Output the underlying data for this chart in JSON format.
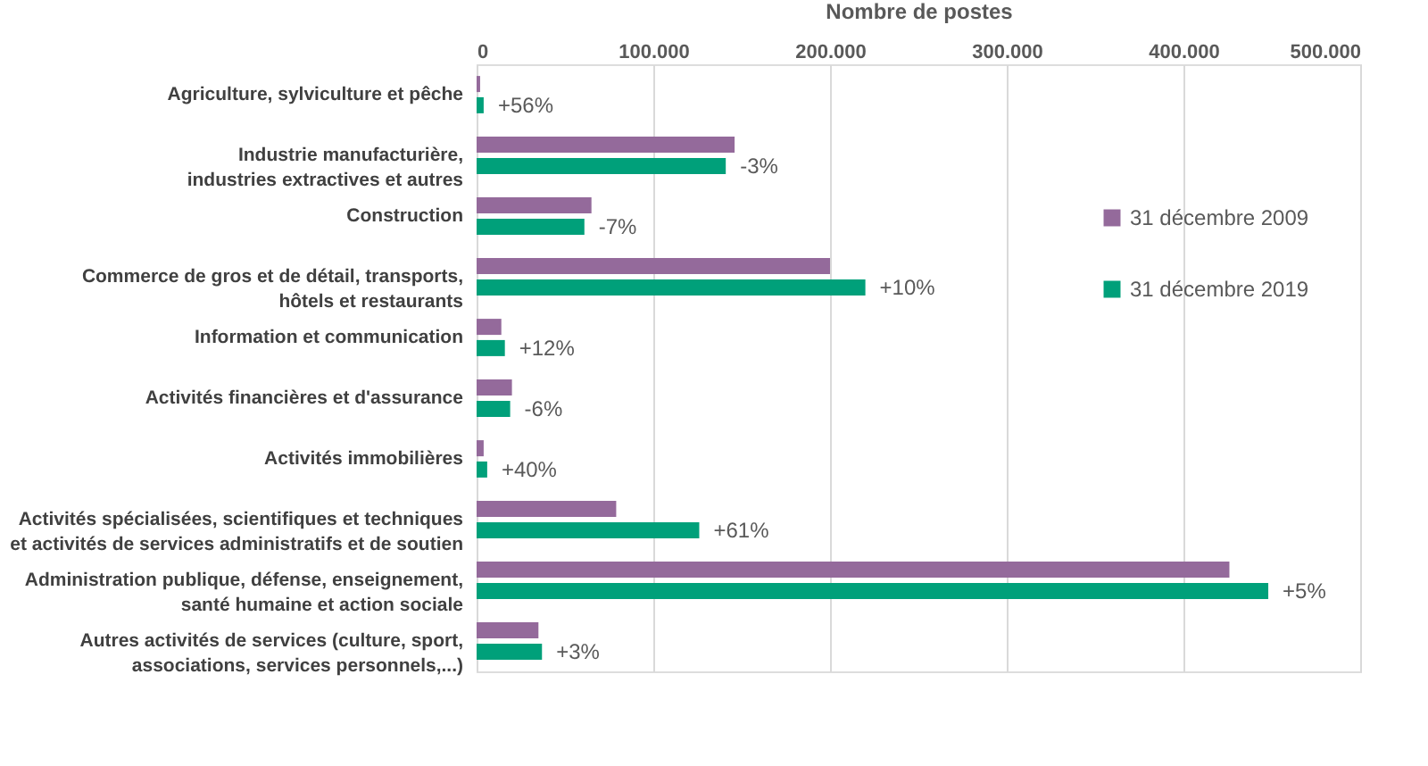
{
  "chart_data": {
    "type": "bar",
    "orientation": "horizontal",
    "xlabel": "Nombre de postes",
    "categories": [
      "Agriculture, sylviculture et pêche",
      "Industrie manufacturière,\nindustries extractives et autres",
      "Construction",
      "Commerce de gros et de détail, transports,\nhôtels et restaurants",
      "Information et communication",
      "Activités financières et d'assurance",
      "Activités immobilières",
      "Activités spécialisées, scientifiques et techniques\net activités de services administratifs et de soutien",
      "Administration publique, défense, enseignement,\nsanté humaine et action sociale",
      "Autres activités de services (culture, sport,\nassociations, services personnels,...)"
    ],
    "series": [
      {
        "name": "31 décembre 2009",
        "color": "#946a9b",
        "values": [
          2000,
          146000,
          65000,
          200000,
          14000,
          20000,
          4000,
          79000,
          426000,
          35000
        ]
      },
      {
        "name": "31 décembre 2019",
        "color": "#00a07a",
        "values": [
          4000,
          141000,
          61000,
          220000,
          16000,
          19000,
          6000,
          126000,
          448000,
          37000
        ]
      }
    ],
    "annotations": [
      {
        "text": "+56%",
        "x": 4000,
        "y": "Agriculture, sylviculture et pêche"
      },
      {
        "text": "-3%",
        "x": 141000,
        "y": "Industrie manufacturière,\nindustries extractives et autres"
      },
      {
        "text": "-7%",
        "x": 61000,
        "y": "Construction"
      },
      {
        "text": "+10%",
        "x": 220000,
        "y": "Commerce de gros et de détail, transports,\nhôtels et restaurants"
      },
      {
        "text": "+12%",
        "x": 16000,
        "y": "Information et communication"
      },
      {
        "text": "-6%",
        "x": 19000,
        "y": "Activités financières et d'assurance"
      },
      {
        "text": "+40%",
        "x": 6000,
        "y": "Activités immobilières"
      },
      {
        "text": "+61%",
        "x": 126000,
        "y": "Activités spécialisées, scientifiques et techniques\net activités de services administratifs et de soutien"
      },
      {
        "text": "+5%",
        "x": 448000,
        "y": "Administration publique, défense, enseignement,\nsanté humaine et action sociale"
      },
      {
        "text": "+3%",
        "x": 37000,
        "y": "Autres activités de services (culture, sport,\nassociations, services personnels,...)"
      }
    ],
    "xlim": [
      0,
      500000
    ],
    "xticks": [
      {
        "value": 0,
        "label": "0"
      },
      {
        "value": 100000,
        "label": "100.000"
      },
      {
        "value": 200000,
        "label": "200.000"
      },
      {
        "value": 300000,
        "label": "300.000"
      },
      {
        "value": 400000,
        "label": "400.000"
      },
      {
        "value": 500000,
        "label": "500.000"
      }
    ],
    "grid": "x",
    "legend": "right"
  }
}
